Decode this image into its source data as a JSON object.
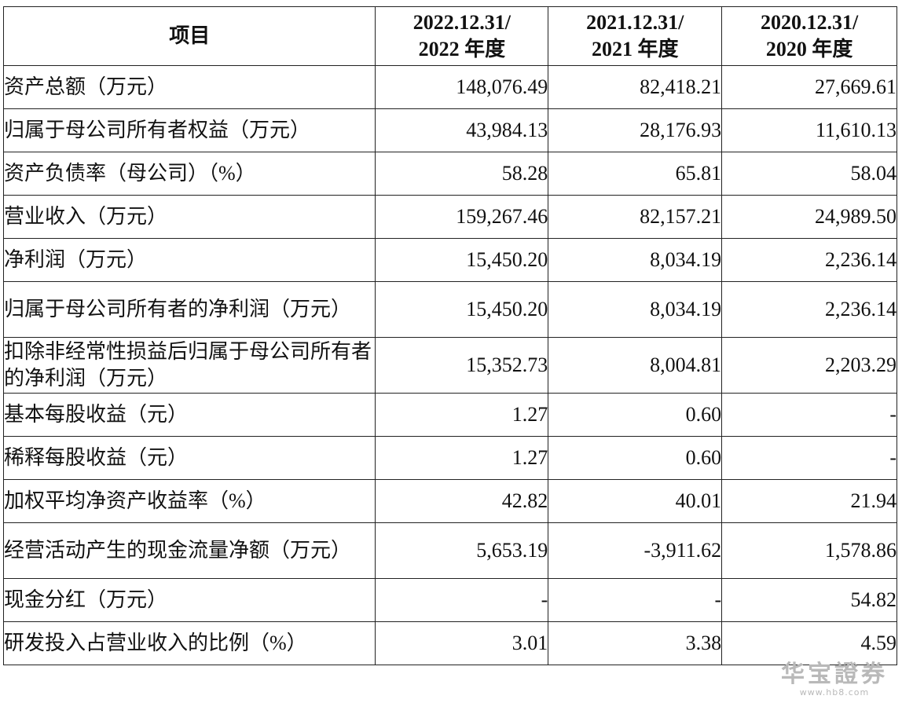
{
  "table": {
    "header": {
      "item": "项目",
      "col1": [
        "2022.12.31/",
        "2022 年度"
      ],
      "col2": [
        "2021.12.31/",
        "2021 年度"
      ],
      "col3": [
        "2020.12.31/",
        "2020 年度"
      ]
    },
    "rows": [
      {
        "label": "资产总额（万元）",
        "v2022": "148,076.49",
        "v2021": "82,418.21",
        "v2020": "27,669.61"
      },
      {
        "label": "归属于母公司所有者权益（万元）",
        "v2022": "43,984.13",
        "v2021": "28,176.93",
        "v2020": "11,610.13"
      },
      {
        "label": "资产负债率（母公司）（%）",
        "v2022": "58.28",
        "v2021": "65.81",
        "v2020": "58.04"
      },
      {
        "label": "营业收入（万元）",
        "v2022": "159,267.46",
        "v2021": "82,157.21",
        "v2020": "24,989.50"
      },
      {
        "label": "净利润（万元）",
        "v2022": "15,450.20",
        "v2021": "8,034.19",
        "v2020": "2,236.14"
      },
      {
        "label": "归属于母公司所有者的净利润（万元）",
        "v2022": "15,450.20",
        "v2021": "8,034.19",
        "v2020": "2,236.14"
      },
      {
        "label": "扣除非经常性损益后归属于母公司所有者的净利润（万元）",
        "v2022": "15,352.73",
        "v2021": "8,004.81",
        "v2020": "2,203.29"
      },
      {
        "label": "基本每股收益（元）",
        "v2022": "1.27",
        "v2021": "0.60",
        "v2020": "-"
      },
      {
        "label": "稀释每股收益（元）",
        "v2022": "1.27",
        "v2021": "0.60",
        "v2020": "-"
      },
      {
        "label": "加权平均净资产收益率（%）",
        "v2022": "42.82",
        "v2021": "40.01",
        "v2020": "21.94"
      },
      {
        "label": "经营活动产生的现金流量净额（万元）",
        "v2022": "5,653.19",
        "v2021": "-3,911.62",
        "v2020": "1,578.86"
      },
      {
        "label": "现金分红（万元）",
        "v2022": "-",
        "v2021": "-",
        "v2020": "54.82"
      },
      {
        "label": "研发投入占营业收入的比例（%）",
        "v2022": "3.01",
        "v2021": "3.38",
        "v2020": "4.59"
      }
    ]
  },
  "watermark": {
    "text": "华宝證券",
    "url": "www.hb8.com"
  }
}
